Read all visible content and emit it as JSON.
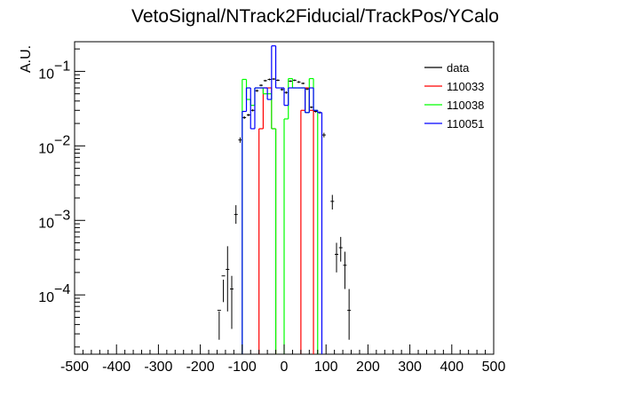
{
  "chart_data": {
    "type": "step-histogram",
    "title": "VetoSignal/NTrack2Fiducial/TrackPos/YCalo",
    "xlabel": "",
    "ylabel": "A.U.",
    "xlim": [
      -500,
      500
    ],
    "ylim": [
      1.6e-05,
      0.25
    ],
    "yscale": "log",
    "x_ticks": [
      -500,
      -400,
      -300,
      -200,
      -100,
      0,
      100,
      200,
      300,
      400,
      500
    ],
    "y_ticks": [
      {
        "value": 0.1,
        "mantissa": "10",
        "exponent": "−1"
      },
      {
        "value": 0.01,
        "mantissa": "10",
        "exponent": "−2"
      },
      {
        "value": 0.001,
        "mantissa": "10",
        "exponent": "−3"
      },
      {
        "value": 0.0001,
        "mantissa": "10",
        "exponent": "−4"
      }
    ],
    "legend_position": "top-right",
    "bin_width": 10,
    "series": [
      {
        "name": "data",
        "color": "#000000",
        "style": "errorbar",
        "points": [
          {
            "x": -155,
            "y": 6.2e-05,
            "err": [
              2.5e-05,
              6e-05
            ]
          },
          {
            "x": -145,
            "y": 0.00018,
            "err": [
              8e-05,
              0.00016
            ]
          },
          {
            "x": -135,
            "y": 0.00022,
            "err": [
              6e-05,
              0.00045
            ]
          },
          {
            "x": -125,
            "y": 0.00012,
            "err": [
              3.5e-05,
              0.00018
            ]
          },
          {
            "x": -115,
            "y": 0.0012,
            "err": [
              0.0009,
              0.0016
            ]
          },
          {
            "x": -105,
            "y": 0.012,
            "err": [
              0.011,
              0.013
            ]
          },
          {
            "x": -95,
            "y": 0.024,
            "err": [
              0.023,
              0.025
            ]
          },
          {
            "x": -85,
            "y": 0.026,
            "err": [
              0.025,
              0.027
            ]
          },
          {
            "x": -75,
            "y": 0.03,
            "err": [
              0.029,
              0.031
            ]
          },
          {
            "x": -65,
            "y": 0.055,
            "err": [
              0.053,
              0.057
            ]
          },
          {
            "x": -55,
            "y": 0.065,
            "err": [
              0.063,
              0.067
            ]
          },
          {
            "x": -45,
            "y": 0.075,
            "err": [
              0.073,
              0.077
            ]
          },
          {
            "x": -35,
            "y": 0.078,
            "err": [
              0.076,
              0.08
            ]
          },
          {
            "x": -25,
            "y": 0.079,
            "err": [
              0.077,
              0.081
            ]
          },
          {
            "x": -15,
            "y": 0.076,
            "err": [
              0.074,
              0.078
            ]
          },
          {
            "x": -5,
            "y": 0.057,
            "err": [
              0.055,
              0.059
            ]
          },
          {
            "x": 5,
            "y": 0.052,
            "err": [
              0.05,
              0.054
            ]
          },
          {
            "x": 15,
            "y": 0.074,
            "err": [
              0.072,
              0.076
            ]
          },
          {
            "x": 25,
            "y": 0.076,
            "err": [
              0.074,
              0.078
            ]
          },
          {
            "x": 35,
            "y": 0.072,
            "err": [
              0.07,
              0.074
            ]
          },
          {
            "x": 45,
            "y": 0.069,
            "err": [
              0.067,
              0.071
            ]
          },
          {
            "x": 55,
            "y": 0.058,
            "err": [
              0.056,
              0.06
            ]
          },
          {
            "x": 65,
            "y": 0.033,
            "err": [
              0.032,
              0.034
            ]
          },
          {
            "x": 75,
            "y": 0.029,
            "err": [
              0.028,
              0.03
            ]
          },
          {
            "x": 85,
            "y": 0.028,
            "err": [
              0.027,
              0.029
            ]
          },
          {
            "x": 95,
            "y": 0.014,
            "err": [
              0.013,
              0.015
            ]
          },
          {
            "x": 115,
            "y": 0.0018,
            "err": [
              0.0014,
              0.0022
            ]
          },
          {
            "x": 125,
            "y": 0.00035,
            "err": [
              0.0002,
              0.0005
            ]
          },
          {
            "x": 135,
            "y": 0.00043,
            "err": [
              0.00028,
              0.0006
            ]
          },
          {
            "x": 145,
            "y": 0.00025,
            "err": [
              0.00012,
              0.00038
            ]
          },
          {
            "x": 155,
            "y": 6.2e-05,
            "err": [
              2.5e-05,
              0.00012
            ]
          }
        ]
      },
      {
        "name": "110033",
        "color": "#ff0000",
        "style": "step",
        "bins": [
          [
            -60,
            0.017
          ],
          [
            -50,
            0.06
          ],
          [
            -40,
            0.06
          ],
          [
            -30,
            0.017
          ],
          [
            40,
            0.03
          ],
          [
            50,
            0.06
          ],
          [
            60,
            0.03
          ]
        ]
      },
      {
        "name": "110038",
        "color": "#00ff00",
        "style": "step",
        "bins": [
          [
            -100,
            0.078
          ],
          [
            -90,
            0.042
          ],
          [
            -80,
            0.035
          ],
          [
            -70,
            0.06
          ],
          [
            -60,
            0.06
          ],
          [
            -50,
            0.05
          ],
          [
            -40,
            0.05
          ],
          [
            -30,
            0.017
          ],
          [
            0,
            0.023
          ],
          [
            10,
            0.08
          ],
          [
            20,
            0.06
          ],
          [
            30,
            0.06
          ],
          [
            40,
            0.06
          ],
          [
            50,
            0.028
          ],
          [
            60,
            0.08
          ],
          [
            70,
            0.03
          ]
        ]
      },
      {
        "name": "110051",
        "color": "#0000ff",
        "style": "step",
        "bins": [
          [
            -100,
            0.029
          ],
          [
            -90,
            0.06
          ],
          [
            -80,
            0.017
          ],
          [
            -70,
            0.06
          ],
          [
            -60,
            0.06
          ],
          [
            -50,
            0.06
          ],
          [
            -40,
            0.042
          ],
          [
            -30,
            0.22
          ],
          [
            -20,
            0.06
          ],
          [
            -10,
            0.06
          ],
          [
            0,
            0.035
          ],
          [
            10,
            0.06
          ],
          [
            20,
            0.06
          ],
          [
            30,
            0.06
          ],
          [
            40,
            0.06
          ],
          [
            50,
            0.028
          ],
          [
            60,
            0.06
          ],
          [
            70,
            0.03
          ],
          [
            80,
            0.028
          ]
        ]
      }
    ]
  }
}
